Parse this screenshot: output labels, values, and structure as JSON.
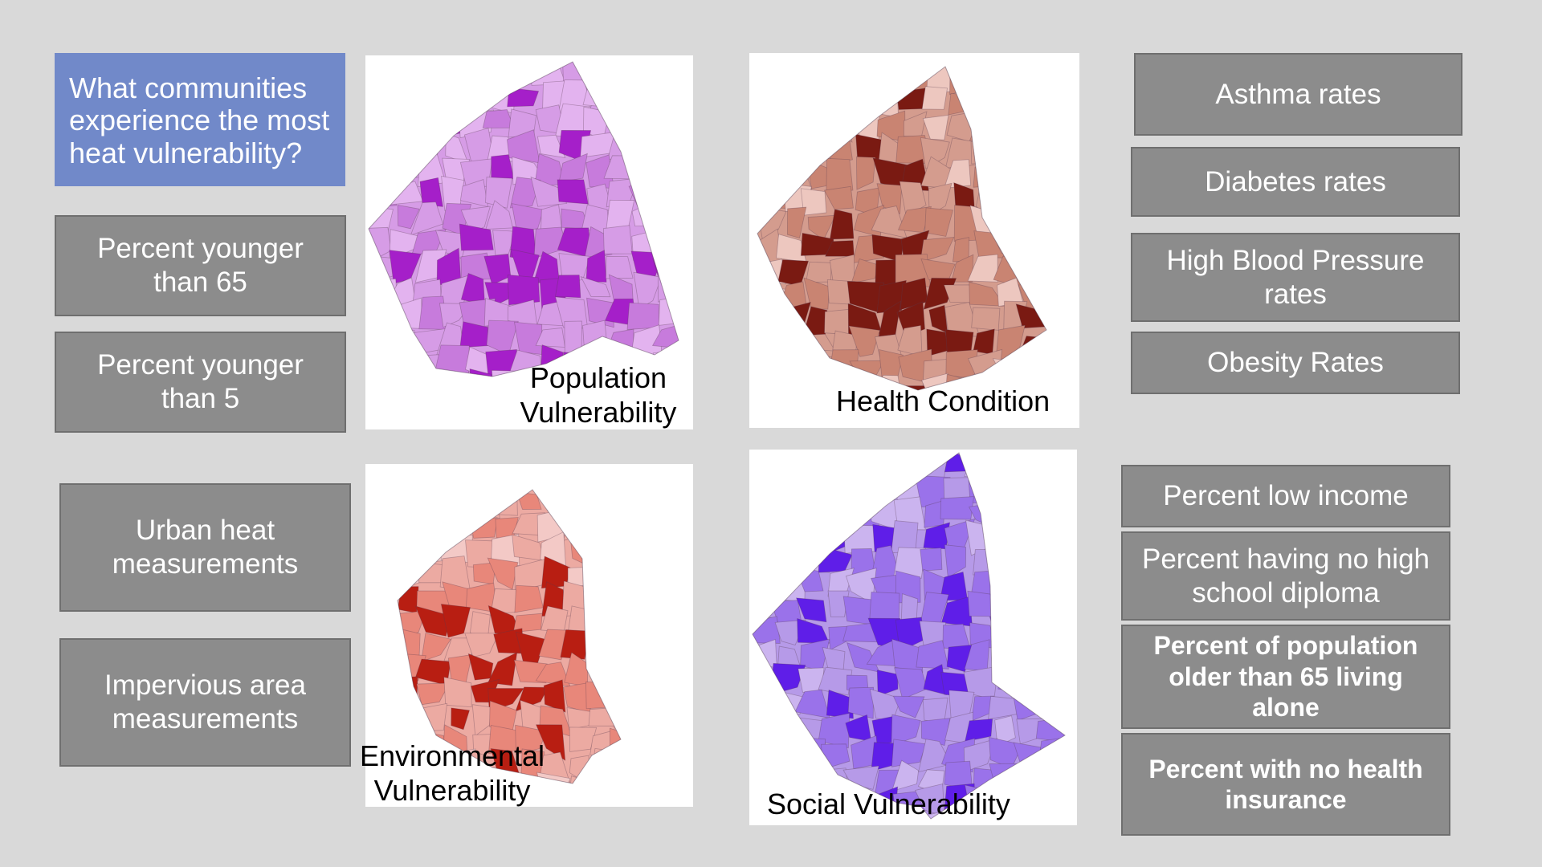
{
  "question": "What communities experience the most heat vulnerability?",
  "population": {
    "map_label": "Population Vulnerability",
    "factors": [
      "Percent younger than 65",
      "Percent younger than 5"
    ],
    "colors": {
      "light": "#e3b3ef",
      "mid": "#c77bdc",
      "dark": "#a51fc9",
      "base": "#d69ce6"
    }
  },
  "health": {
    "map_label": "Health Condition",
    "factors": [
      "Asthma rates",
      "Diabetes rates",
      "High Blood Pressure rates",
      "Obesity Rates"
    ],
    "colors": {
      "light": "#edc7bf",
      "mid": "#c98472",
      "dark": "#7a1a12",
      "base": "#d49c8e"
    }
  },
  "environmental": {
    "map_label": "Environmental Vulnerability",
    "factors": [
      "Urban heat measurements",
      "Impervious area measurements"
    ],
    "colors": {
      "light": "#f3c9c6",
      "mid": "#e8877a",
      "dark": "#b81e12",
      "base": "#ecaaa2"
    }
  },
  "social": {
    "map_label": "Social Vulnerability",
    "factors": [
      "Percent low income",
      "Percent having no high school diploma",
      "Percent of population older than 65 living alone",
      "Percent with no health insurance"
    ],
    "colors": {
      "light": "#cbb4ef",
      "mid": "#9a72ea",
      "dark": "#5f1ee8",
      "base": "#b69ae8"
    }
  }
}
